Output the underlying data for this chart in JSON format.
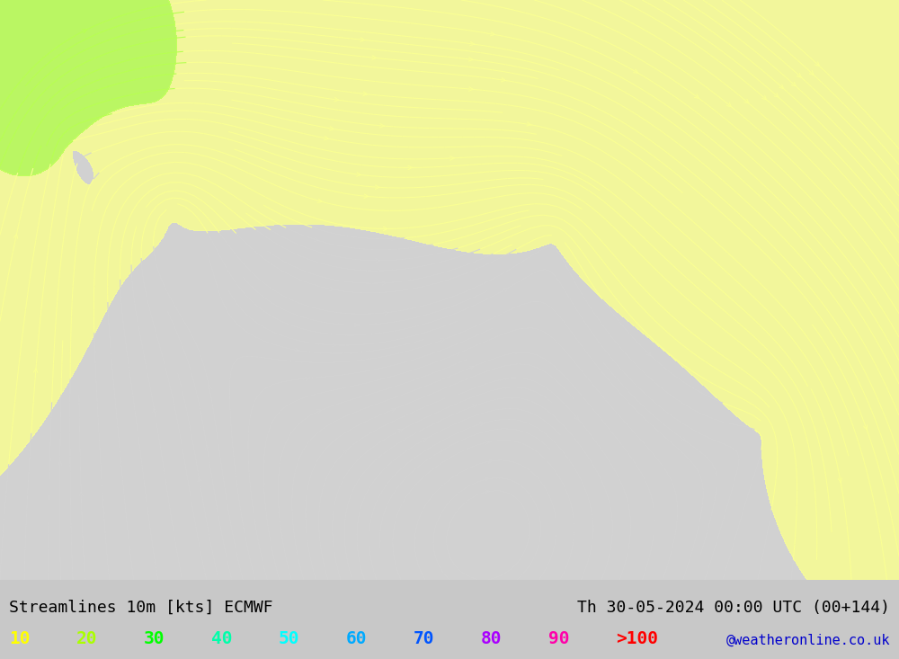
{
  "title_left": "Streamlines 10m [kts] ECMWF",
  "title_right": "Th 30-05-2024 00:00 UTC (00+144)",
  "credit": "@weatheronline.co.uk",
  "legend_values": [
    "10",
    "20",
    "30",
    "40",
    "50",
    "60",
    "70",
    "80",
    "90",
    ">100"
  ],
  "legend_colors": [
    "#ffff00",
    "#aaff00",
    "#00ff00",
    "#00ffaa",
    "#00ffff",
    "#00aaff",
    "#0055ff",
    "#aa00ff",
    "#ff00aa",
    "#ff0000"
  ],
  "background_color": "#d3d3d3",
  "map_background": "#f0f0f0",
  "speed_colormap_colors": [
    "#d3d3d3",
    "#ffff99",
    "#ccff66",
    "#66ff00",
    "#00ff66",
    "#00ffff",
    "#0099ff",
    "#0000ff",
    "#9900ff",
    "#ff00ff",
    "#ff0000"
  ],
  "speed_colormap_levels": [
    0,
    10,
    20,
    30,
    40,
    50,
    60,
    70,
    80,
    90,
    100
  ],
  "figsize": [
    10.0,
    7.33
  ],
  "dpi": 100
}
